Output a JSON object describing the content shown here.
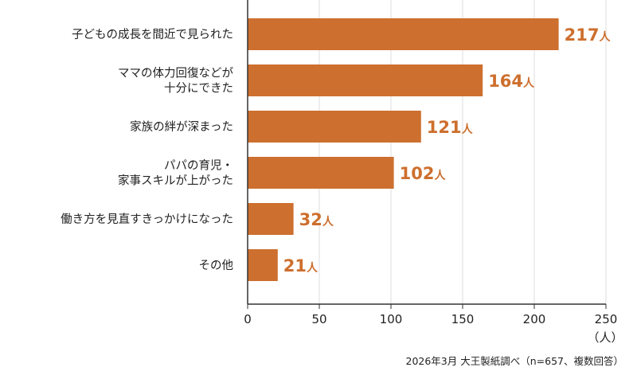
{
  "chart_data": {
    "type": "bar",
    "orientation": "horizontal",
    "categories": [
      [
        "子どもの成長を間近で見られた"
      ],
      [
        "ママの体力回復などが",
        "十分にできた"
      ],
      [
        "家族の絆が深まった"
      ],
      [
        "パパの育児・",
        "家事スキルが上がった"
      ],
      [
        "働き方を見直すきっかけになった"
      ],
      [
        "その他"
      ]
    ],
    "values": [
      217,
      164,
      121,
      102,
      32,
      21
    ],
    "value_unit": "人",
    "xlim": [
      0,
      250
    ],
    "xticks": [
      "0",
      "50",
      "100",
      "150",
      "200",
      "250"
    ],
    "x_unit_label": "（人）",
    "grid": true,
    "bar_color": "#cd6f2e",
    "label_color": "#cd6f2e",
    "grid_color": "#dddddd",
    "axis_color": "#333333"
  },
  "source_note": "2026年3月 大王製紙調べ（n=657、複数回答）"
}
